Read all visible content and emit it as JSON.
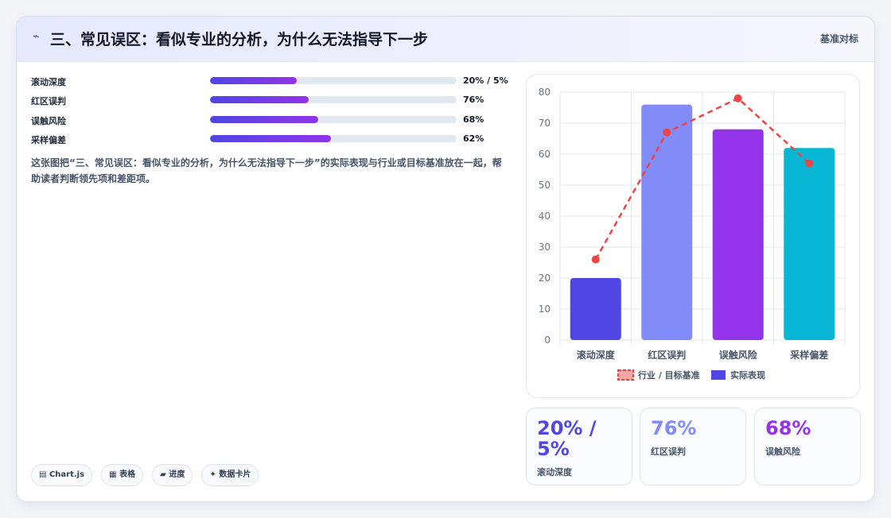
{
  "header": {
    "icon": "chart-line-icon",
    "title": "三、常见误区：看似专业的分析，为什么无法指导下一步",
    "tag": "基准对标"
  },
  "metrics": [
    {
      "label": "滚动深度",
      "value": "20% / 5%",
      "progress": 0.35
    },
    {
      "label": "红区误判",
      "value": "76%",
      "progress": 0.4
    },
    {
      "label": "误触风险",
      "value": "68%",
      "progress": 0.44
    },
    {
      "label": "采样偏差",
      "value": "62%",
      "progress": 0.49
    }
  ],
  "description": "这张图把“三、常见误区：看似专业的分析，为什么无法指导下一步”的实际表现与行业或目标基准放在一起，帮助读者判断领先项和差距项。",
  "chips": [
    {
      "icon": "chart-icon",
      "glyph": "▤",
      "label": "Chart.js"
    },
    {
      "icon": "table-icon",
      "glyph": "▦",
      "label": "表格"
    },
    {
      "icon": "progress-icon",
      "glyph": "▰",
      "label": "进度"
    },
    {
      "icon": "data-card-icon",
      "glyph": "✦",
      "label": "数据卡片"
    }
  ],
  "chart_data": {
    "type": "bar",
    "categories": [
      "滚动深度",
      "红区误判",
      "误触风险",
      "采样偏差"
    ],
    "series": [
      {
        "name": "实际表现",
        "type": "bar",
        "values": [
          20,
          76,
          68,
          62
        ],
        "colors": [
          "#4f46e5",
          "#818cf8",
          "#9333ea",
          "#06b6d4"
        ]
      },
      {
        "name": "行业 / 目标基准",
        "type": "line",
        "style": "dashed",
        "color": "#ef4444",
        "values": [
          26,
          67,
          78,
          57
        ]
      }
    ],
    "ylim": [
      0,
      80
    ],
    "yticks": [
      0,
      10,
      20,
      30,
      40,
      50,
      60,
      70,
      80
    ],
    "grid": true,
    "legend": "bottom",
    "legend_order": [
      "行业 / 目标基准",
      "实际表现"
    ]
  },
  "stats": [
    {
      "value": "20% / 5%",
      "label": "滚动深度",
      "color": "#4f46e5"
    },
    {
      "value": "76%",
      "label": "红区误判",
      "color": "#818cf8"
    },
    {
      "value": "68%",
      "label": "误触风险",
      "color": "#9333ea"
    }
  ]
}
